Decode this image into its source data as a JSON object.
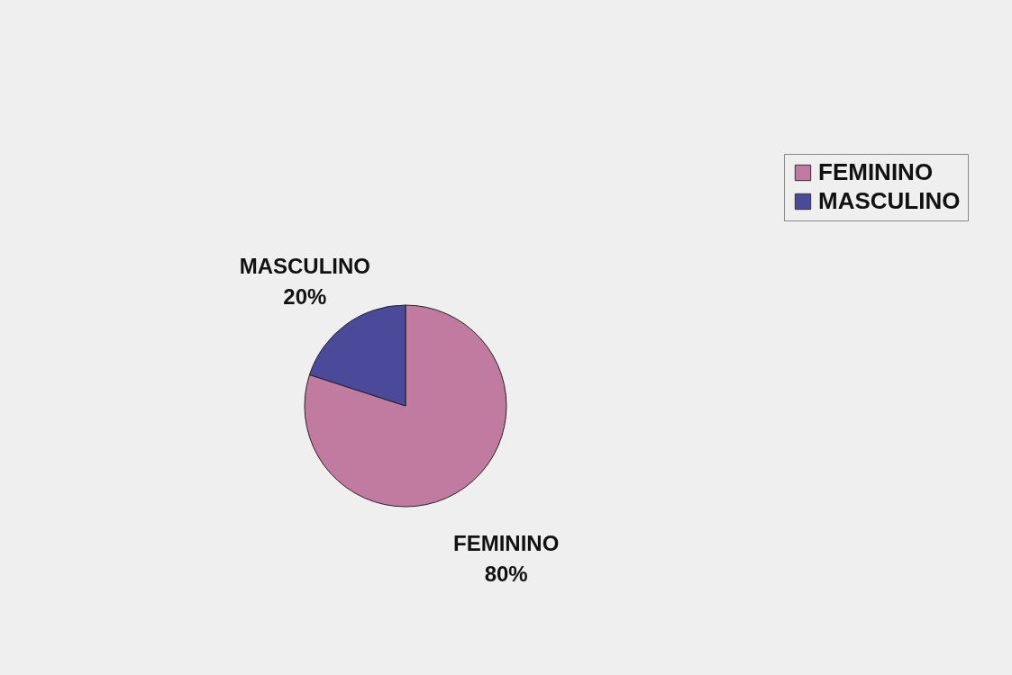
{
  "chart_data": {
    "type": "pie",
    "categories": [
      "FEMININO",
      "MASCULINO"
    ],
    "values": [
      80,
      20
    ],
    "colors": [
      "#c27ba0",
      "#4b4a9a"
    ],
    "value_labels": [
      "80%",
      "20%"
    ],
    "legend": "right"
  }
}
